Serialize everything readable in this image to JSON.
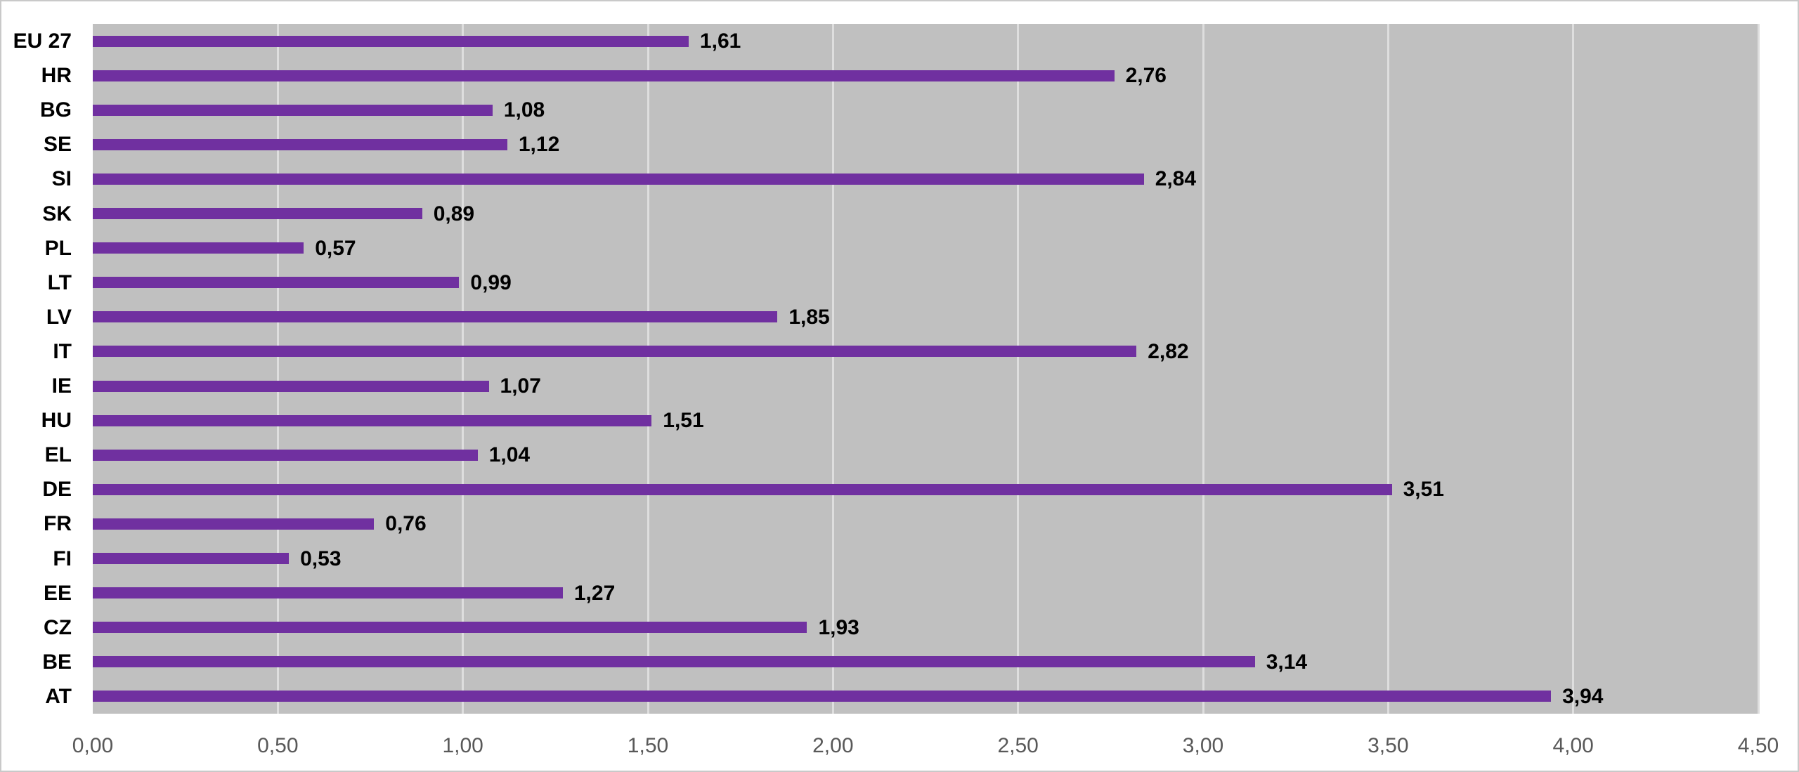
{
  "chart_data": {
    "type": "bar",
    "orientation": "horizontal",
    "title": "",
    "xlabel": "",
    "ylabel": "",
    "xlim": [
      0,
      4.5
    ],
    "grid": true,
    "legend": false,
    "category_order": "top_to_bottom",
    "categories": [
      "EU 27",
      "HR",
      "BG",
      "SE",
      "SI",
      "SK",
      "PL",
      "LT",
      "LV",
      "IT",
      "IE",
      "HU",
      "EL",
      "DE",
      "FR",
      "FI",
      "EE",
      "CZ",
      "BE",
      "AT"
    ],
    "values": [
      1.61,
      2.76,
      1.08,
      1.12,
      2.84,
      0.89,
      0.57,
      0.99,
      1.85,
      2.82,
      1.07,
      1.51,
      1.04,
      3.51,
      0.76,
      0.53,
      1.27,
      1.93,
      3.14,
      3.94
    ],
    "value_labels": [
      "1,61",
      "2,76",
      "1,08",
      "1,12",
      "2,84",
      "0,89",
      "0,57",
      "0,99",
      "1,85",
      "2,82",
      "1,07",
      "1,51",
      "1,04",
      "3,51",
      "0,76",
      "0,53",
      "1,27",
      "1,93",
      "3,14",
      "3,94"
    ],
    "x_ticks": [
      {
        "label": "0,00",
        "value": 0
      },
      {
        "label": "0,50",
        "value": 0.5
      },
      {
        "label": "1,00",
        "value": 1
      },
      {
        "label": "1,50",
        "value": 1.5
      },
      {
        "label": "2,00",
        "value": 2
      },
      {
        "label": "2,50",
        "value": 2.5
      },
      {
        "label": "3,00",
        "value": 3
      },
      {
        "label": "3,50",
        "value": 3.5
      },
      {
        "label": "4,00",
        "value": 4
      },
      {
        "label": "4,50",
        "value": 4.5
      }
    ],
    "colors": {
      "bar": "#7030a0",
      "plot_background": "#c0c0c0",
      "gridline": "#dedede",
      "label_text": "#000000",
      "tick_text": "#595959",
      "page_background": "#ffffff",
      "border": "#c9c9c9"
    }
  }
}
